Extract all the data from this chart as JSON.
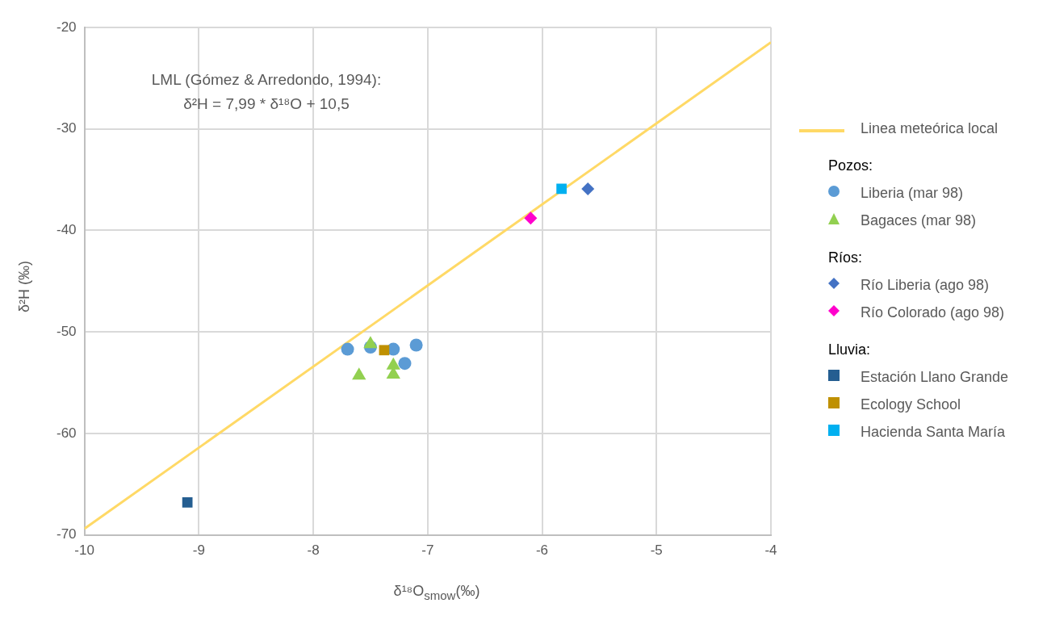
{
  "chart_data": {
    "type": "scatter",
    "xlabel": "δ¹⁸O$_{smow}$(‰)",
    "ylabel": "δ²H (‰)",
    "xlim": [
      -10,
      -4
    ],
    "xticks": [
      -10,
      -9,
      -8,
      -7,
      -6,
      -5,
      -4
    ],
    "ylim": [
      -70,
      -20
    ],
    "yticks": [
      -70,
      -60,
      -50,
      -40,
      -30,
      -20
    ],
    "grid": true,
    "legend": "right",
    "annotations": [
      "LML (Gómez & Arredondo, 1994):\nδ²H = 7,99 * δ¹⁸O + 10,5",
      "Pozos:",
      "Ríos:",
      "Lluvia:"
    ],
    "series": [
      {
        "name": "Linea meteórica local",
        "type": "line",
        "marker": "none",
        "color": "#ffd966",
        "x": [
          -10,
          -4
        ],
        "values": [
          -69.4,
          -21.46
        ]
      },
      {
        "name": "Liberia (mar 98)",
        "marker": "circle",
        "color": "#5b9bd5",
        "x": [
          -7.7,
          -7.5,
          -7.3,
          -7.1,
          -7.2
        ],
        "values": [
          -51.7,
          -51.5,
          -51.7,
          -51.3,
          -53.1
        ]
      },
      {
        "name": "Bagaces (mar 98)",
        "marker": "triangle",
        "color": "#92d050",
        "x": [
          -7.5,
          -7.6,
          -7.3,
          -7.3
        ],
        "values": [
          -51.2,
          -54.3,
          -53.3,
          -54.2
        ]
      },
      {
        "name": "Río Liberia (ago 98)",
        "marker": "diamond",
        "color": "#4472c4",
        "x": [
          -5.6
        ],
        "values": [
          -35.9
        ]
      },
      {
        "name": "Río Colorado (ago 98)",
        "marker": "diamond",
        "color": "#ff00cc",
        "x": [
          -6.1
        ],
        "values": [
          -38.8
        ]
      },
      {
        "name": "Estación Llano Grande",
        "marker": "square",
        "color": "#255e91",
        "x": [
          -9.1
        ],
        "values": [
          -66.8
        ]
      },
      {
        "name": "Ecology School",
        "marker": "square",
        "color": "#bf9000",
        "x": [
          -7.38
        ],
        "values": [
          -51.8
        ]
      },
      {
        "name": "Hacienda Santa María",
        "marker": "square",
        "color": "#00b0f0",
        "x": [
          -5.83
        ],
        "values": [
          -35.9
        ]
      }
    ]
  }
}
